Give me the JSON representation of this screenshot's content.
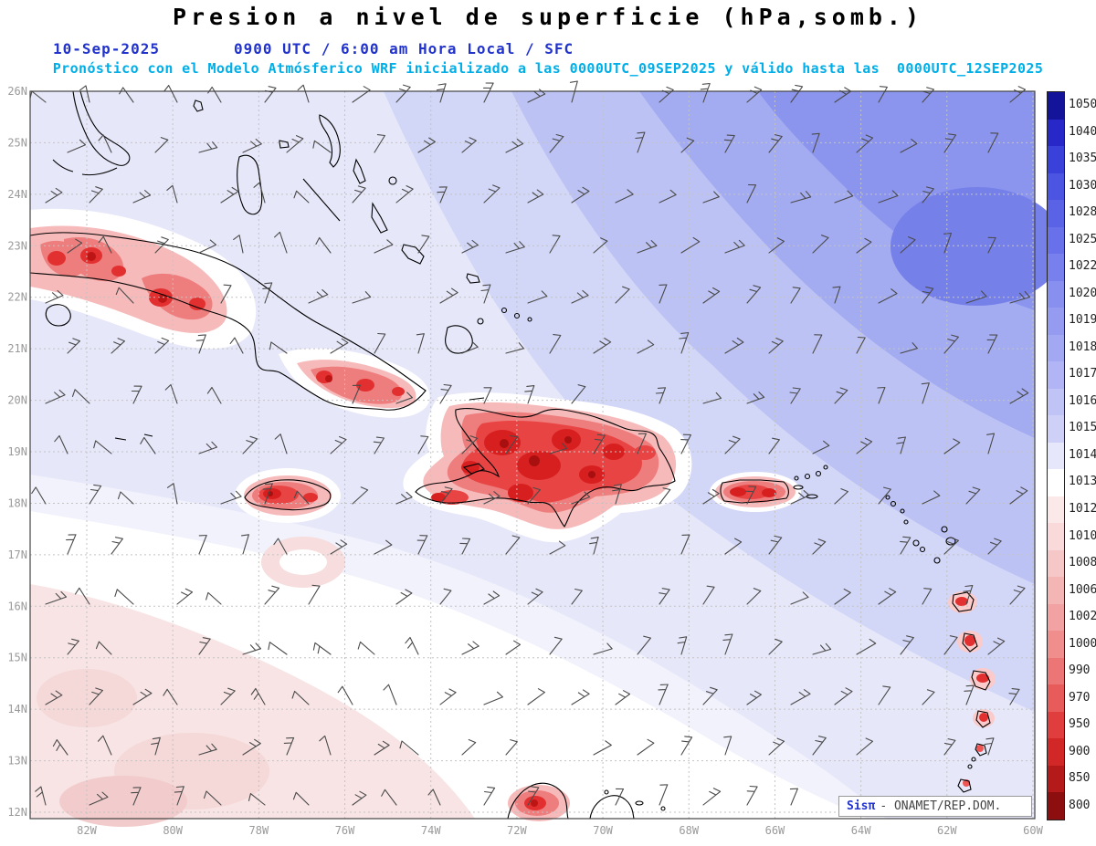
{
  "header": {
    "title": "Presion a nivel de superficie (hPa,somb.)",
    "date": "10-Sep-2025",
    "time": "0900 UTC / 6:00 am Hora Local / SFC",
    "forecast": "Pronóstico con el Modelo Atmósferico WRF inicializado a las 0000UTC_09SEP2025 y válido hasta las  0000UTC_12SEP2025"
  },
  "map": {
    "lat_labels": [
      "26N",
      "25N",
      "24N",
      "23N",
      "22N",
      "21N",
      "20N",
      "19N",
      "18N",
      "17N",
      "16N",
      "15N",
      "14N",
      "13N",
      "12N"
    ],
    "lon_labels": [
      "82W",
      "80W",
      "78W",
      "76W",
      "74W",
      "72W",
      "70W",
      "68W",
      "66W",
      "64W",
      "62W",
      "60W"
    ]
  },
  "colorbar": {
    "values": [
      "1050",
      "1040",
      "1035",
      "1030",
      "1028",
      "1025",
      "1022",
      "1020",
      "1019",
      "1018",
      "1017",
      "1016",
      "1015",
      "1014",
      "1013",
      "1012",
      "1010",
      "1008",
      "1006",
      "1002",
      "1000",
      "990",
      "970",
      "950",
      "900",
      "850",
      "800"
    ],
    "colors": [
      "#14149a",
      "#2828c8",
      "#3a40da",
      "#4c54e2",
      "#5a62e6",
      "#6971ea",
      "#7880ed",
      "#8790ef",
      "#959bf1",
      "#a3a8f3",
      "#b1b5f5",
      "#c0c3f6",
      "#ced0f8",
      "#e6e7fb",
      "#ffffff",
      "#fbe9e9",
      "#f9d9d9",
      "#f6c7c7",
      "#f4b5b5",
      "#f2a2a2",
      "#f08e8e",
      "#ec7575",
      "#e75b5b",
      "#e03e3e",
      "#d22727",
      "#b51a1a",
      "#8c0e0e"
    ]
  },
  "credit": {
    "brand": "Sisπ",
    "text": "- ONAMET/REP.DOM."
  },
  "chart_data": {
    "type": "heatmap",
    "title": "Presion a nivel de superficie (hPa,somb.)",
    "units": "hPa",
    "valid_datetime": "10-Sep-2025 0900 UTC / 6:00 am Hora Local / SFC",
    "model": "WRF",
    "initialized": "0000UTC_09SEP2025",
    "valid_until": "0000UTC_12SEP2025",
    "lat_range": [
      "12N",
      "26N"
    ],
    "lon_range": [
      "82W",
      "60W"
    ],
    "scale_values": [
      1050,
      1040,
      1035,
      1030,
      1028,
      1025,
      1022,
      1020,
      1019,
      1018,
      1017,
      1016,
      1015,
      1014,
      1013,
      1012,
      1010,
      1008,
      1006,
      1002,
      1000,
      990,
      970,
      950,
      900,
      850,
      800
    ],
    "scale_colors": [
      "#14149a",
      "#2828c8",
      "#3a40da",
      "#4c54e2",
      "#5a62e6",
      "#6971ea",
      "#7880ed",
      "#8790ef",
      "#959bf1",
      "#a3a8f3",
      "#b1b5f5",
      "#c0c3f6",
      "#ced0f8",
      "#e6e7fb",
      "#ffffff",
      "#fbe9e9",
      "#f9d9d9",
      "#f6c7c7",
      "#f4b5b5",
      "#f2a2a2",
      "#f08e8e",
      "#ec7575",
      "#e75b5b",
      "#e03e3e",
      "#d22727",
      "#b51a1a",
      "#8c0e0e"
    ],
    "layers": [
      "pressure_shading",
      "wind_barbs",
      "coastlines",
      "lat_lon_grid"
    ],
    "regions": [
      {
        "area": "northeast Atlantic (top-right)",
        "pressure_hPa": "1019-1025 (high)"
      },
      {
        "area": "central Caribbean and Greater Antilles waters",
        "pressure_hPa": "1014-1017"
      },
      {
        "area": "southwest quadrant (bottom-left)",
        "pressure_hPa": "1010-1013 (relative low)"
      },
      {
        "area": "island interiors (Cuba, Hispaniola, Jamaica, Puerto Rico, Lesser Antilles)",
        "pressure_hPa": "below 1008 (red cores)"
      }
    ]
  }
}
